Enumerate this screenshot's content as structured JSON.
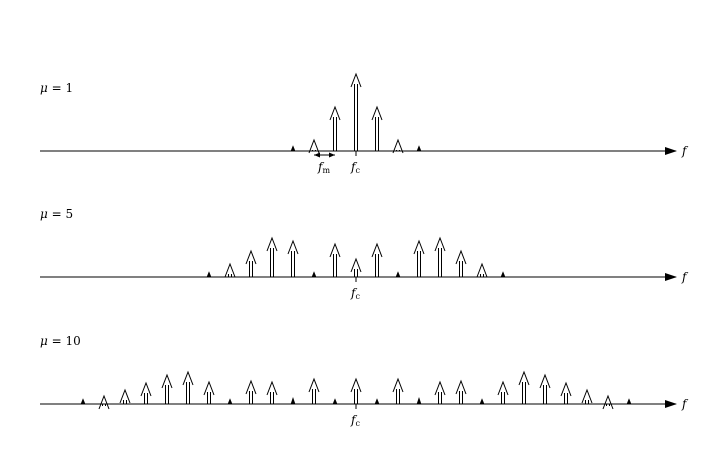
{
  "figure": {
    "axis_label": "f",
    "carrier_label": {
      "main": "f",
      "sub": "c"
    },
    "spacing_label": {
      "main": "f",
      "sub": "m"
    },
    "panels": [
      {
        "mu_symbol": "μ",
        "mu_eq": " = 1",
        "show_spacing": true,
        "lines": [
          {
            "k": -3,
            "a": 0.02
          },
          {
            "k": -2,
            "a": 0.11
          },
          {
            "k": -1,
            "a": 0.44
          },
          {
            "k": 0,
            "a": 0.77
          },
          {
            "k": 1,
            "a": 0.44
          },
          {
            "k": 2,
            "a": 0.11
          },
          {
            "k": 3,
            "a": 0.02
          }
        ]
      },
      {
        "mu_symbol": "μ",
        "mu_eq": " = 5",
        "show_spacing": false,
        "lines": [
          {
            "k": -7,
            "a": 0.05
          },
          {
            "k": -6,
            "a": 0.13
          },
          {
            "k": -5,
            "a": 0.26
          },
          {
            "k": -4,
            "a": 0.39
          },
          {
            "k": -3,
            "a": 0.36
          },
          {
            "k": -2,
            "a": 0.05
          },
          {
            "k": -1,
            "a": 0.33
          },
          {
            "k": 0,
            "a": 0.18
          },
          {
            "k": 1,
            "a": 0.33
          },
          {
            "k": 2,
            "a": 0.05
          },
          {
            "k": 3,
            "a": 0.36
          },
          {
            "k": 4,
            "a": 0.39
          },
          {
            "k": 5,
            "a": 0.26
          },
          {
            "k": 6,
            "a": 0.13
          },
          {
            "k": 7,
            "a": 0.05
          }
        ]
      },
      {
        "mu_symbol": "μ",
        "mu_eq": " = 10",
        "show_spacing": false,
        "lines": [
          {
            "k": -13,
            "a": 0.03
          },
          {
            "k": -12,
            "a": 0.08
          },
          {
            "k": -11,
            "a": 0.14
          },
          {
            "k": -10,
            "a": 0.21
          },
          {
            "k": -9,
            "a": 0.29
          },
          {
            "k": -8,
            "a": 0.32
          },
          {
            "k": -7,
            "a": 0.22
          },
          {
            "k": -6,
            "a": 0.01
          },
          {
            "k": -5,
            "a": 0.23
          },
          {
            "k": -4,
            "a": 0.22
          },
          {
            "k": -3,
            "a": 0.06
          },
          {
            "k": -2,
            "a": 0.25
          },
          {
            "k": -1,
            "a": 0.04
          },
          {
            "k": 0,
            "a": 0.25
          },
          {
            "k": 1,
            "a": 0.04
          },
          {
            "k": 2,
            "a": 0.25
          },
          {
            "k": 3,
            "a": 0.06
          },
          {
            "k": 4,
            "a": 0.22
          },
          {
            "k": 5,
            "a": 0.23
          },
          {
            "k": 6,
            "a": 0.01
          },
          {
            "k": 7,
            "a": 0.22
          },
          {
            "k": 8,
            "a": 0.32
          },
          {
            "k": 9,
            "a": 0.29
          },
          {
            "k": 10,
            "a": 0.21
          },
          {
            "k": 11,
            "a": 0.14
          },
          {
            "k": 12,
            "a": 0.08
          },
          {
            "k": 13,
            "a": 0.03
          }
        ]
      }
    ]
  }
}
